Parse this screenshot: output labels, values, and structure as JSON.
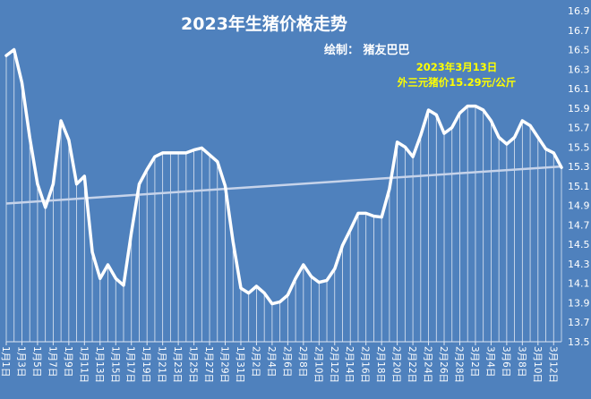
{
  "chart_data": {
    "type": "line",
    "title": "2023年生猪价格走势",
    "subtitle": "绘制：  猪友巴巴",
    "annotation": [
      "2023年3月13日",
      "外三元猪价15.29元/公斤"
    ],
    "xlabel": "",
    "ylabel": "",
    "ylim": [
      13.5,
      16.9
    ],
    "yticks": [
      "16.9",
      "16.7",
      "16.5",
      "16.3",
      "16.1",
      "15.9",
      "15.7",
      "15.5",
      "15.3",
      "15.1",
      "14.9",
      "14.7",
      "14.5",
      "14.3",
      "14.1",
      "13.9",
      "13.7",
      "13.5"
    ],
    "x_tick_labels": [
      "1月1日",
      "1月3日",
      "1月5日",
      "1月7日",
      "1月9日",
      "1月11日",
      "1月13日",
      "1月15日",
      "1月17日",
      "1月19日",
      "1月21日",
      "1月23日",
      "1月25日",
      "1月27日",
      "1月29日",
      "1月31日",
      "2月2日",
      "2月4日",
      "2月6日",
      "2月8日",
      "2月10日",
      "2月12日",
      "2月14日",
      "2月16日",
      "2月18日",
      "2月20日",
      "2月22日",
      "2月24日",
      "2月26日",
      "2月28日",
      "3月2日",
      "3月4日",
      "3月6日",
      "3月8日",
      "3月10日",
      "3月12日"
    ],
    "categories": [
      "1月1日",
      "1月2日",
      "1月3日",
      "1月4日",
      "1月5日",
      "1月6日",
      "1月7日",
      "1月8日",
      "1月9日",
      "1月10日",
      "1月11日",
      "1月12日",
      "1月13日",
      "1月14日",
      "1月15日",
      "1月16日",
      "1月17日",
      "1月18日",
      "1月19日",
      "1月20日",
      "1月21日",
      "1月22日",
      "1月23日",
      "1月24日",
      "1月25日",
      "1月26日",
      "1月27日",
      "1月28日",
      "1月29日",
      "1月30日",
      "1月31日",
      "2月1日",
      "2月2日",
      "2月3日",
      "2月4日",
      "2月5日",
      "2月6日",
      "2月7日",
      "2月8日",
      "2月9日",
      "2月10日",
      "2月11日",
      "2月12日",
      "2月13日",
      "2月14日",
      "2月15日",
      "2月16日",
      "2月17日",
      "2月18日",
      "2月19日",
      "2月20日",
      "2月21日",
      "2月22日",
      "2月23日",
      "2月24日",
      "2月25日",
      "2月26日",
      "2月27日",
      "2月28日",
      "3月1日",
      "3月2日",
      "3月3日",
      "3月4日",
      "3月5日",
      "3月6日",
      "3月7日",
      "3月8日",
      "3月9日",
      "3月10日",
      "3月11日",
      "3月12日",
      "3月13日"
    ],
    "series": [
      {
        "values": [
          16.44,
          16.5,
          16.16,
          15.6,
          15.12,
          14.88,
          15.12,
          15.77,
          15.57,
          15.12,
          15.2,
          14.42,
          14.15,
          14.29,
          14.15,
          14.08,
          14.62,
          15.12,
          15.27,
          15.4,
          15.44,
          15.44,
          15.44,
          15.44,
          15.47,
          15.49,
          15.42,
          15.35,
          15.1,
          14.53,
          14.05,
          14.0,
          14.07,
          14.0,
          13.89,
          13.91,
          13.98,
          14.15,
          14.29,
          14.17,
          14.11,
          14.13,
          14.25,
          14.49,
          14.65,
          14.82,
          14.82,
          14.79,
          14.78,
          15.07,
          15.55,
          15.5,
          15.4,
          15.62,
          15.88,
          15.83,
          15.64,
          15.7,
          15.85,
          15.92,
          15.92,
          15.88,
          15.77,
          15.6,
          15.53,
          15.6,
          15.77,
          15.72,
          15.6,
          15.48,
          15.44,
          15.29
        ],
        "color": "#ffffff"
      },
      {
        "type": "trendline",
        "values_endpoints": [
          14.92,
          15.3
        ],
        "color": "#c6d3ea"
      }
    ],
    "grid": false,
    "drop_lines": true,
    "colors": {
      "background": "#4f81bd",
      "line": "#ffffff",
      "trend": "#c6d3ea",
      "annotation": "#ffff00"
    }
  }
}
